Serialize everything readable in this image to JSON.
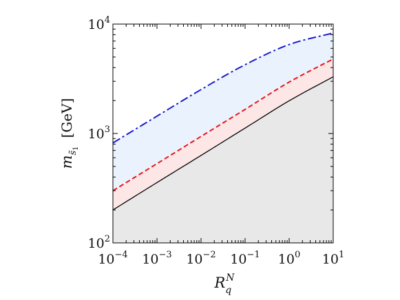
{
  "chart_data": {
    "type": "area",
    "title": "",
    "xlabel": {
      "base": "R",
      "sup": "N",
      "sub": "q"
    },
    "ylabel": {
      "base": "m",
      "sub": "s̃",
      "subsub": "1",
      "unit": "[GeV]"
    },
    "x_scale": "log",
    "y_scale": "log",
    "xlim": [
      0.0001,
      10
    ],
    "ylim": [
      100,
      10000
    ],
    "x_ticks": [
      {
        "value": 0.0001,
        "base": "10",
        "exp": "−4"
      },
      {
        "value": 0.001,
        "base": "10",
        "exp": "−3"
      },
      {
        "value": 0.01,
        "base": "10",
        "exp": "−2"
      },
      {
        "value": 0.1,
        "base": "10",
        "exp": "−1"
      },
      {
        "value": 1,
        "base": "10",
        "exp": "0"
      },
      {
        "value": 10,
        "base": "10",
        "exp": "1"
      }
    ],
    "y_ticks": [
      {
        "value": 100,
        "base": "10",
        "exp": "2"
      },
      {
        "value": 1000,
        "base": "10",
        "exp": "3"
      },
      {
        "value": 10000,
        "base": "10",
        "exp": "4"
      }
    ],
    "grid": false,
    "legend": "none",
    "series": [
      {
        "style": "solid",
        "color": "#000000",
        "fill": "#e8e8e8",
        "x": [
          0.0001,
          0.001,
          0.01,
          0.1,
          1,
          10
        ],
        "y": [
          200,
          356,
          630,
          1120,
          1990,
          3300
        ]
      },
      {
        "style": "dashed",
        "color": "#e8141c",
        "fill": "#fde6e6",
        "x": [
          0.0001,
          0.001,
          0.01,
          0.1,
          1,
          10
        ],
        "y": [
          300,
          530,
          940,
          1660,
          2950,
          4800
        ]
      },
      {
        "style": "dash-dot",
        "color": "#1a1acc",
        "fill": "#eaf3fd",
        "x": [
          0.0001,
          0.001,
          0.01,
          0.1,
          1,
          10
        ],
        "y": [
          820,
          1440,
          2520,
          4250,
          6500,
          8300
        ]
      }
    ]
  }
}
